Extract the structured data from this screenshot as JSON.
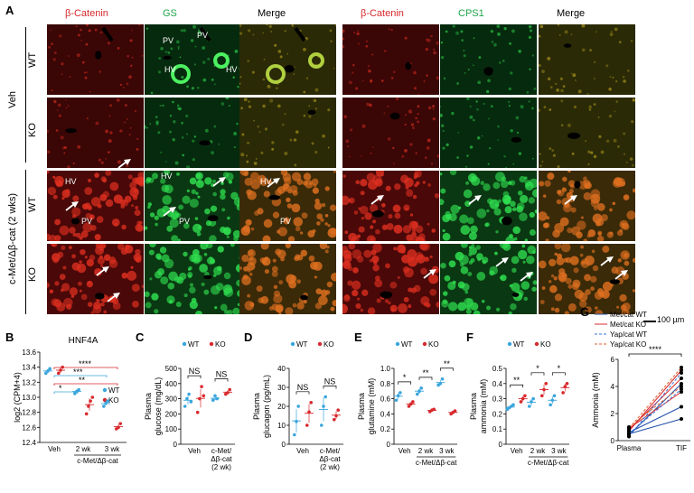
{
  "panel_a": {
    "letter": "A",
    "headers": [
      "β-Catenin",
      "GS",
      "Merge",
      "β-Catenin",
      "CPS1",
      "Merge"
    ],
    "row_groups": [
      "Veh",
      "c-Met/Δβ-cat (2 wks)"
    ],
    "rows": [
      "WT",
      "KO",
      "WT",
      "KO"
    ],
    "image_labels": {
      "pv": "PV",
      "hv": "HV"
    },
    "scale_bar": "100 µm",
    "colors": {
      "red": "#d8282c",
      "green": "#1ea54a"
    }
  },
  "chart_data": [
    {
      "id": "B",
      "letter": "B",
      "type": "scatter",
      "title": "HNF4A",
      "ylabel": "log2 (CPM+4)",
      "ylim": [
        12.4,
        13.6
      ],
      "yticks": [
        "12.4",
        "12.6",
        "12.8",
        "13.0",
        "13.2",
        "13.4",
        "13.6"
      ],
      "categories": [
        "Veh",
        "2 wk",
        "3 wk"
      ],
      "group_label": "c-Met/Δβ-cat",
      "legend": [
        "WT",
        "KO"
      ],
      "series": [
        {
          "name": "WT",
          "color": "#3aa6dd",
          "groups": [
            [
              13.32,
              13.35,
              13.38
            ],
            [
              13.05,
              13.08,
              13.1
            ],
            [
              12.88,
              12.92,
              12.95
            ]
          ]
        },
        {
          "name": "KO",
          "color": "#d8282c",
          "groups": [
            [
              13.32,
              13.36,
              13.4
            ],
            [
              12.78,
              12.88,
              12.95,
              13.0
            ],
            [
              12.58,
              12.6,
              12.65
            ]
          ]
        }
      ],
      "significance": [
        {
          "text": "*",
          "from": 0,
          "to": 1
        },
        {
          "text": "**",
          "from": 0,
          "to": 2
        },
        {
          "text": "***",
          "from": 0,
          "to": 2
        },
        {
          "text": "****",
          "from": 0,
          "to": 2
        }
      ]
    },
    {
      "id": "C",
      "letter": "C",
      "type": "scatter",
      "ylabel": "Plasma glucose (mg/dL)",
      "ylim": [
        0,
        500
      ],
      "yticks": [
        "0",
        "100",
        "200",
        "300",
        "400",
        "500"
      ],
      "categories": [
        "Veh",
        "c-Met/Δβ-cat (2 wk)"
      ],
      "legend": [
        "WT",
        "KO"
      ],
      "series": [
        {
          "name": "WT",
          "color": "#3aa6dd",
          "groups": [
            [
              250,
              300,
              330,
              280
            ],
            [
              290,
              320,
              300
            ]
          ]
        },
        {
          "name": "KO",
          "color": "#d8282c",
          "groups": [
            [
              210,
              300,
              380,
              320
            ],
            [
              330,
              340,
              360
            ]
          ]
        }
      ],
      "significance": [
        {
          "text": "NS",
          "cat": 0
        },
        {
          "text": "NS",
          "cat": 1
        }
      ]
    },
    {
      "id": "D",
      "letter": "D",
      "type": "scatter",
      "ylabel": "Plasma glucagon (pg/mL)",
      "ylim": [
        0,
        40
      ],
      "yticks": [
        "0",
        "10",
        "20",
        "30",
        "40"
      ],
      "categories": [
        "Veh",
        "c-Met/Δβ-cat (2 wk)"
      ],
      "legend": [
        "WT",
        "KO"
      ],
      "series": [
        {
          "name": "WT",
          "color": "#3aa6dd",
          "groups": [
            [
              5,
              12,
              20
            ],
            [
              10,
              20,
              25
            ]
          ]
        },
        {
          "name": "KO",
          "color": "#d8282c",
          "groups": [
            [
              10,
              17,
              22
            ],
            [
              13,
              15,
              18
            ]
          ]
        }
      ],
      "significance": [
        {
          "text": "NS",
          "cat": 0
        },
        {
          "text": "NS",
          "cat": 1
        }
      ]
    },
    {
      "id": "E",
      "letter": "E",
      "type": "scatter",
      "ylabel": "Plasma glutamine (mM)",
      "ylim": [
        0,
        1.0
      ],
      "yticks": [
        "0",
        "0.2",
        "0.4",
        "0.6",
        "0.8",
        "1.0"
      ],
      "categories": [
        "Veh",
        "2 wk",
        "3 wk"
      ],
      "group_label": "c-Met/Δβ-cat",
      "legend": [
        "WT",
        "KO"
      ],
      "series": [
        {
          "name": "WT",
          "color": "#3aa6dd",
          "groups": [
            [
              0.58,
              0.64,
              0.68
            ],
            [
              0.66,
              0.7,
              0.74
            ],
            [
              0.78,
              0.8,
              0.86
            ]
          ]
        },
        {
          "name": "KO",
          "color": "#d8282c",
          "groups": [
            [
              0.5,
              0.53,
              0.56
            ],
            [
              0.43,
              0.45,
              0.46
            ],
            [
              0.4,
              0.42,
              0.44
            ]
          ]
        }
      ],
      "significance": [
        {
          "text": "*",
          "cat": 0
        },
        {
          "text": "**",
          "cat": 1
        },
        {
          "text": "**",
          "cat": 2
        }
      ]
    },
    {
      "id": "F",
      "letter": "F",
      "type": "scatter",
      "ylabel": "Plasma ammonia (mM)",
      "ylim": [
        0,
        0.5
      ],
      "yticks": [
        "0",
        "0.1",
        "0.2",
        "0.3",
        "0.4",
        "0.5"
      ],
      "categories": [
        "Veh",
        "2 wk",
        "3 wk"
      ],
      "group_label": "c-Met/Δβ-cat",
      "legend": [
        "WT",
        "KO"
      ],
      "series": [
        {
          "name": "WT",
          "color": "#3aa6dd",
          "groups": [
            [
              0.23,
              0.24,
              0.25,
              0.26
            ],
            [
              0.25,
              0.28,
              0.3
            ],
            [
              0.26,
              0.29,
              0.32
            ]
          ]
        },
        {
          "name": "KO",
          "color": "#d8282c",
          "groups": [
            [
              0.28,
              0.3,
              0.32
            ],
            [
              0.32,
              0.36,
              0.4
            ],
            [
              0.34,
              0.38,
              0.4
            ]
          ]
        }
      ],
      "significance": [
        {
          "text": "**",
          "cat": 0
        },
        {
          "text": "*",
          "cat": 1
        },
        {
          "text": "*",
          "cat": 2
        }
      ]
    },
    {
      "id": "G",
      "letter": "G",
      "type": "line",
      "ylabel": "Ammonia (mM)",
      "ylim": [
        0,
        6
      ],
      "yticks": [
        "0",
        "2",
        "4",
        "6"
      ],
      "categories": [
        "Plasma",
        "TIF"
      ],
      "legend": [
        "Met/cat WT",
        "Met/cat KO",
        "Yap/cat WT",
        "Yap/cat KO"
      ],
      "significance": [
        {
          "text": "****"
        }
      ],
      "series": [
        {
          "name": "Met/cat WT",
          "color": "#1f4fa8",
          "dash": false,
          "pairs": [
            [
              0.4,
              4.2
            ],
            [
              0.6,
              2.5
            ],
            [
              0.5,
              1.6
            ]
          ]
        },
        {
          "name": "Met/cat KO",
          "color": "#d8282c",
          "dash": false,
          "pairs": [
            [
              0.7,
              5.2
            ],
            [
              0.8,
              4.6
            ],
            [
              0.9,
              3.6
            ]
          ]
        },
        {
          "name": "Yap/cat WT",
          "color": "#3a6fd8",
          "dash": true,
          "pairs": [
            [
              0.3,
              5.0
            ],
            [
              0.5,
              3.8
            ]
          ]
        },
        {
          "name": "Yap/cat KO",
          "color": "#e06030",
          "dash": true,
          "pairs": [
            [
              0.9,
              5.4
            ],
            [
              1.0,
              4.0
            ]
          ]
        }
      ]
    }
  ]
}
